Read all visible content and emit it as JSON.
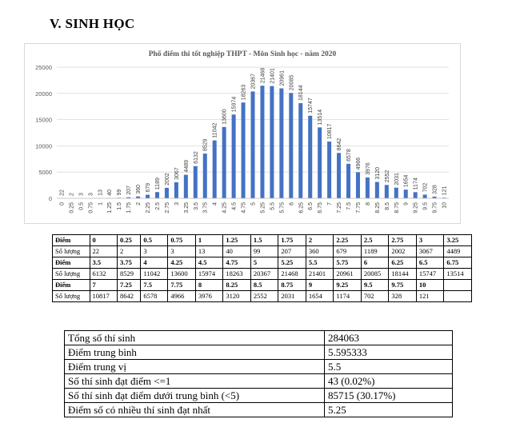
{
  "heading": "V.  SINH HỌC",
  "chart_data": {
    "type": "bar",
    "title": "Phổ điểm thi tốt nghiệp THPT - Môn Sinh học - năm 2020",
    "categories": [
      "0",
      "0.25",
      "0.5",
      "0.75",
      "1",
      "1.25",
      "1.5",
      "1.75",
      "2",
      "2.25",
      "2.5",
      "2.75",
      "3",
      "3.25",
      "3.5",
      "3.75",
      "4",
      "4.25",
      "4.5",
      "4.75",
      "5",
      "5.25",
      "5.5",
      "5.75",
      "6",
      "6.25",
      "6.5",
      "6.75",
      "7",
      "7.25",
      "7.5",
      "7.75",
      "8",
      "8.25",
      "8.5",
      "8.75",
      "9",
      "9.25",
      "9.5",
      "9.75",
      "10"
    ],
    "values": [
      22,
      2,
      3,
      3,
      13,
      40,
      99,
      207,
      360,
      679,
      1189,
      2002,
      3067,
      4489,
      6132,
      8529,
      11042,
      13600,
      15974,
      18263,
      20367,
      21468,
      21401,
      20961,
      20085,
      18144,
      15747,
      13514,
      10817,
      8642,
      6578,
      4966,
      3976,
      3120,
      2552,
      2031,
      1654,
      1174,
      702,
      328,
      121
    ],
    "ylim": [
      0,
      25000
    ],
    "yticks": [
      "0",
      "5000",
      "10000",
      "15000",
      "20000",
      "25000"
    ],
    "grid": true,
    "bar_color": "#4472c4"
  },
  "score_table": {
    "row_label_score": "Điểm",
    "row_label_count": "Số lượng",
    "groups": [
      {
        "scores": [
          "0",
          "0.25",
          "0.5",
          "0.75",
          "1",
          "1.25",
          "1.5",
          "1.75",
          "2",
          "2.25",
          "2.5",
          "2.75",
          "3",
          "3.25"
        ],
        "counts": [
          "22",
          "2",
          "3",
          "3",
          "13",
          "40",
          "99",
          "207",
          "360",
          "679",
          "1189",
          "2002",
          "3067",
          "4489"
        ]
      },
      {
        "scores": [
          "3.5",
          "3.75",
          "4",
          "4.25",
          "4.5",
          "4.75",
          "5",
          "5.25",
          "5.5",
          "5.75",
          "6",
          "6.25",
          "6.5",
          "6.75"
        ],
        "counts": [
          "6132",
          "8529",
          "11042",
          "13600",
          "15974",
          "18263",
          "20367",
          "21468",
          "21401",
          "20961",
          "20085",
          "18144",
          "15747",
          "13514"
        ]
      },
      {
        "scores": [
          "7",
          "7.25",
          "7.5",
          "7.75",
          "8",
          "8.25",
          "8.5",
          "8.75",
          "9",
          "9.25",
          "9.5",
          "9.75",
          "10",
          ""
        ],
        "counts": [
          "10817",
          "8642",
          "6578",
          "4966",
          "3976",
          "3120",
          "2552",
          "2031",
          "1654",
          "1174",
          "702",
          "328",
          "121",
          ""
        ]
      }
    ]
  },
  "stats": [
    {
      "label": "Tổng số thí sinh",
      "value": "284063"
    },
    {
      "label": "Điểm trung bình",
      "value": "5.595333"
    },
    {
      "label": "Điểm trung vị",
      "value": "5.5"
    },
    {
      "label": "Số thí sinh đạt điểm <=1",
      "value": "43 (0.02%)"
    },
    {
      "label": "Số thí sinh đạt điểm dưới trung bình (<5)",
      "value": "85715 (30.17%)"
    },
    {
      "label": "Điểm số có nhiều thí sinh đạt nhất",
      "value": "5.25"
    }
  ]
}
